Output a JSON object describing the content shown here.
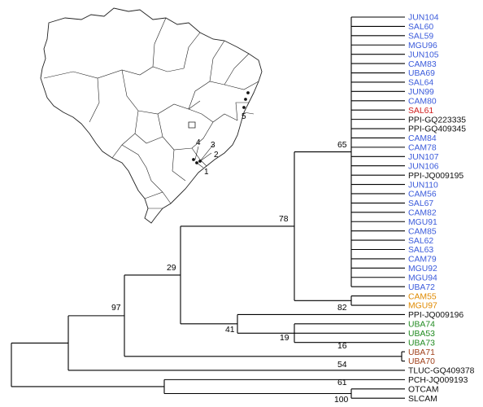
{
  "colors": {
    "blue": "#3b5bdb",
    "red": "#d01c1c",
    "black": "#111111",
    "orange": "#e08a00",
    "green": "#1f8a1f",
    "brown": "#a0401a"
  },
  "tree": {
    "leaves": [
      {
        "label": "JUN104",
        "group": "blue"
      },
      {
        "label": "SAL60",
        "group": "blue"
      },
      {
        "label": "SAL59",
        "group": "blue"
      },
      {
        "label": "MGU96",
        "group": "blue"
      },
      {
        "label": "JUN105",
        "group": "blue"
      },
      {
        "label": "CAM83",
        "group": "blue"
      },
      {
        "label": "UBA69",
        "group": "blue"
      },
      {
        "label": "SAL64",
        "group": "blue"
      },
      {
        "label": "JUN99",
        "group": "blue"
      },
      {
        "label": "CAM80",
        "group": "blue"
      },
      {
        "label": "SAL61",
        "group": "red"
      },
      {
        "label": "PPI-GQ223335",
        "group": "black"
      },
      {
        "label": "PPI-GQ409345",
        "group": "black"
      },
      {
        "label": "CAM84",
        "group": "blue"
      },
      {
        "label": "CAM78",
        "group": "blue"
      },
      {
        "label": "JUN107",
        "group": "blue"
      },
      {
        "label": "JUN106",
        "group": "blue"
      },
      {
        "label": "PPI-JQ009195",
        "group": "black"
      },
      {
        "label": "JUN110",
        "group": "blue"
      },
      {
        "label": "CAM56",
        "group": "blue"
      },
      {
        "label": "SAL67",
        "group": "blue"
      },
      {
        "label": "CAM82",
        "group": "blue"
      },
      {
        "label": "MGU91",
        "group": "blue"
      },
      {
        "label": "CAM85",
        "group": "blue"
      },
      {
        "label": "SAL62",
        "group": "blue"
      },
      {
        "label": "SAL63",
        "group": "blue"
      },
      {
        "label": "CAM79",
        "group": "blue"
      },
      {
        "label": "MGU92",
        "group": "blue"
      },
      {
        "label": "MGU94",
        "group": "blue"
      },
      {
        "label": "UBA72",
        "group": "blue"
      },
      {
        "label": "CAM55",
        "group": "orange"
      },
      {
        "label": "MGU97",
        "group": "orange"
      },
      {
        "label": "PPI-JQ009196",
        "group": "black"
      },
      {
        "label": "UBA74",
        "group": "green"
      },
      {
        "label": "UBA53",
        "group": "green"
      },
      {
        "label": "UBA73",
        "group": "green"
      },
      {
        "label": "UBA71",
        "group": "brown"
      },
      {
        "label": "UBA70",
        "group": "brown"
      },
      {
        "label": "TLUC-GQ409378",
        "group": "black"
      },
      {
        "label": "PCH-JQ009193",
        "group": "black"
      },
      {
        "label": "OTCAM",
        "group": "black"
      },
      {
        "label": "SLCAM",
        "group": "black"
      }
    ],
    "bootstrap": [
      "65",
      "78",
      "29",
      "97",
      "82",
      "41",
      "19",
      "16",
      "54",
      "61",
      "100"
    ]
  },
  "map": {
    "site_numbers": [
      "1",
      "2",
      "3",
      "4",
      "5"
    ]
  }
}
